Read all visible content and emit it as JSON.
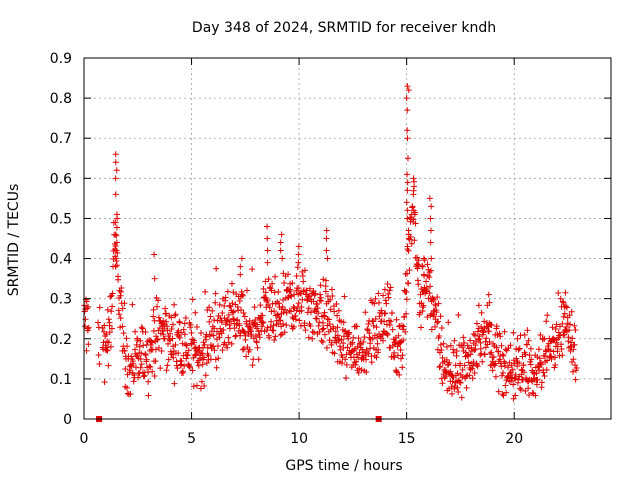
{
  "chart_data": {
    "type": "scatter",
    "title": "Day 348 of 2024, SRMTID for receiver kndh",
    "xlabel": "GPS time / hours",
    "ylabel": "SRMTID / TECUs",
    "xlim": [
      0,
      24.5
    ],
    "ylim": [
      0,
      0.9
    ],
    "xticks": [
      0,
      5,
      10,
      15,
      20
    ],
    "yticks": [
      0,
      0.1,
      0.2,
      0.3,
      0.4,
      0.5,
      0.6,
      0.7,
      0.8,
      0.9
    ],
    "xtick_labels": [
      "0",
      "5",
      "10",
      "15",
      "20"
    ],
    "ytick_labels": [
      "0",
      "0.1",
      "0.2",
      "0.3",
      "0.4",
      "0.5",
      "0.6",
      "0.7",
      "0.8",
      "0.9"
    ],
    "grid": true,
    "marker": "plus",
    "color": "#e00000",
    "trend": [
      [
        0.0,
        0.25
      ],
      [
        0.5,
        0.2
      ],
      [
        0.9,
        0.18
      ],
      [
        1.2,
        0.2
      ],
      [
        1.4,
        0.42
      ],
      [
        1.6,
        0.36
      ],
      [
        1.8,
        0.22
      ],
      [
        2.0,
        0.12
      ],
      [
        2.5,
        0.15
      ],
      [
        3.0,
        0.15
      ],
      [
        3.5,
        0.22
      ],
      [
        4.0,
        0.2
      ],
      [
        4.5,
        0.18
      ],
      [
        5.0,
        0.17
      ],
      [
        5.5,
        0.16
      ],
      [
        6.0,
        0.2
      ],
      [
        6.5,
        0.24
      ],
      [
        7.0,
        0.27
      ],
      [
        7.5,
        0.22
      ],
      [
        8.0,
        0.2
      ],
      [
        8.5,
        0.26
      ],
      [
        9.0,
        0.25
      ],
      [
        9.5,
        0.28
      ],
      [
        10.0,
        0.3
      ],
      [
        10.5,
        0.28
      ],
      [
        11.0,
        0.27
      ],
      [
        11.5,
        0.24
      ],
      [
        12.0,
        0.18
      ],
      [
        12.5,
        0.17
      ],
      [
        13.0,
        0.18
      ],
      [
        13.5,
        0.22
      ],
      [
        14.0,
        0.24
      ],
      [
        14.5,
        0.2
      ],
      [
        14.8,
        0.18
      ],
      [
        15.1,
        0.4
      ],
      [
        15.3,
        0.5
      ],
      [
        15.6,
        0.3
      ],
      [
        16.0,
        0.35
      ],
      [
        16.3,
        0.25
      ],
      [
        16.8,
        0.12
      ],
      [
        17.5,
        0.12
      ],
      [
        18.0,
        0.15
      ],
      [
        18.5,
        0.22
      ],
      [
        19.0,
        0.2
      ],
      [
        19.5,
        0.12
      ],
      [
        20.0,
        0.12
      ],
      [
        20.5,
        0.13
      ],
      [
        21.0,
        0.1
      ],
      [
        21.5,
        0.16
      ],
      [
        22.0,
        0.22
      ],
      [
        22.3,
        0.24
      ],
      [
        22.8,
        0.17
      ]
    ],
    "spread": 0.05,
    "points_per_hour": 60,
    "x_range": [
      0.0,
      22.9
    ],
    "peaks": [
      {
        "x": 1.5,
        "values": [
          0.66,
          0.64,
          0.62,
          0.6,
          0.56,
          0.51,
          0.5,
          0.49,
          0.46,
          0.44,
          0.42,
          0.4,
          0.38
        ]
      },
      {
        "x": 3.3,
        "values": [
          0.41,
          0.35
        ]
      },
      {
        "x": 7.3,
        "values": [
          0.4,
          0.38,
          0.36
        ]
      },
      {
        "x": 8.5,
        "values": [
          0.48,
          0.45,
          0.42,
          0.39
        ]
      },
      {
        "x": 9.2,
        "values": [
          0.46,
          0.44,
          0.42,
          0.4
        ]
      },
      {
        "x": 10.0,
        "values": [
          0.43,
          0.41,
          0.39
        ]
      },
      {
        "x": 11.3,
        "values": [
          0.47,
          0.45,
          0.42,
          0.4
        ]
      },
      {
        "x": 15.05,
        "values": [
          0.83,
          0.82,
          0.8,
          0.77,
          0.72,
          0.7,
          0.65,
          0.61,
          0.59,
          0.57,
          0.54,
          0.52,
          0.5,
          0.47,
          0.45,
          0.43
        ]
      },
      {
        "x": 15.3,
        "values": [
          0.6,
          0.58,
          0.56,
          0.52
        ]
      },
      {
        "x": 16.1,
        "values": [
          0.55,
          0.53,
          0.5,
          0.47,
          0.44,
          0.4,
          0.37
        ]
      },
      {
        "x": 15.8,
        "values": [
          0.4,
          0.38,
          0.36
        ]
      },
      {
        "x": 18.8,
        "values": [
          0.31,
          0.29
        ]
      },
      {
        "x": 22.3,
        "values": [
          0.29,
          0.28
        ]
      }
    ],
    "zero_markers": [
      0.7,
      13.7
    ]
  }
}
